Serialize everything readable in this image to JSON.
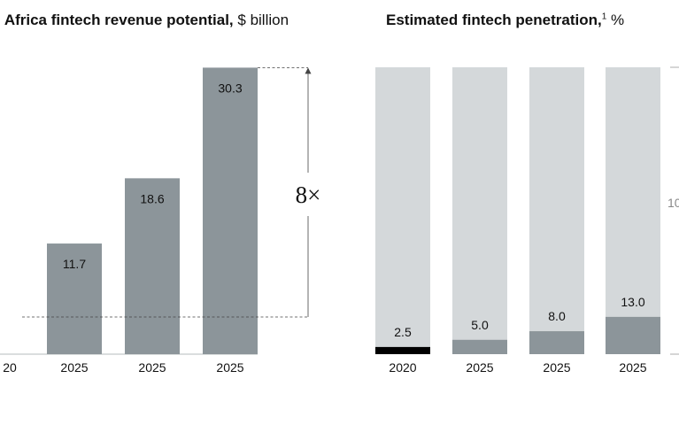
{
  "left_chart": {
    "title_bold": "l Africa fintech revenue potential,",
    "title_unit": "$ billion"
  },
  "right_chart": {
    "title_bold": "Estimated fintech penetration,",
    "title_sup": "1",
    "title_unit": "%"
  },
  "chart_data": [
    {
      "type": "bar",
      "categories": [
        "20",
        "2025",
        "2025",
        "2025"
      ],
      "values": [
        null,
        11.7,
        18.6,
        30.3
      ],
      "value_labels": [
        "",
        "11.7",
        "18.6",
        "30.3"
      ],
      "annotation": "8×",
      "colors": {
        "bar": "#8c959a",
        "axis": "#b5bbbe",
        "label": "#111111"
      }
    },
    {
      "type": "bar",
      "stacked_to": 100,
      "categories": [
        "2020",
        "2025",
        "2025",
        "2025"
      ],
      "values": [
        2.5,
        5.0,
        8.0,
        13.0
      ],
      "value_labels": [
        "2.5",
        "5.0",
        "8.0",
        "13.0"
      ],
      "edge_label": "10",
      "colors": {
        "track": "#d4d8da",
        "fill": "#8c959a",
        "first_fill": "#000000"
      }
    }
  ]
}
